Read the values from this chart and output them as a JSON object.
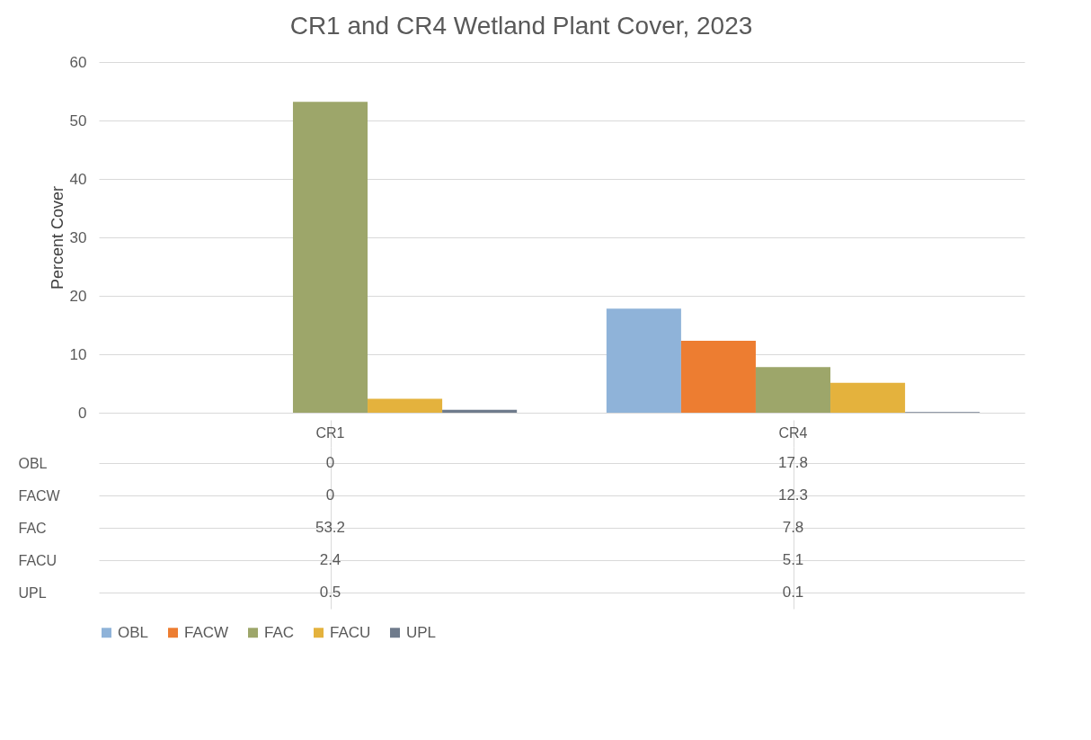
{
  "chart_data": {
    "type": "bar",
    "title": "CR1 and CR4 Wetland Plant Cover, 2023",
    "ylabel": "Percent Cover",
    "categories": [
      "CR1",
      "CR4"
    ],
    "series": [
      {
        "name": "OBL",
        "color": "#8fb3d9",
        "values": [
          0,
          17.8
        ]
      },
      {
        "name": "FACW",
        "color": "#ed7d31",
        "values": [
          0,
          12.3
        ]
      },
      {
        "name": "FAC",
        "color": "#9da66a",
        "values": [
          53.2,
          7.8
        ]
      },
      {
        "name": "FACU",
        "color": "#e4b23d",
        "values": [
          2.4,
          5.1
        ]
      },
      {
        "name": "UPL",
        "color": "#6f7b8c",
        "values": [
          0.5,
          0.1
        ]
      }
    ],
    "ylim": [
      0,
      60
    ],
    "yticks": [
      0,
      10,
      20,
      30,
      40,
      50,
      60
    ],
    "grid": "y",
    "legend": "bottom",
    "data_labels": true
  }
}
